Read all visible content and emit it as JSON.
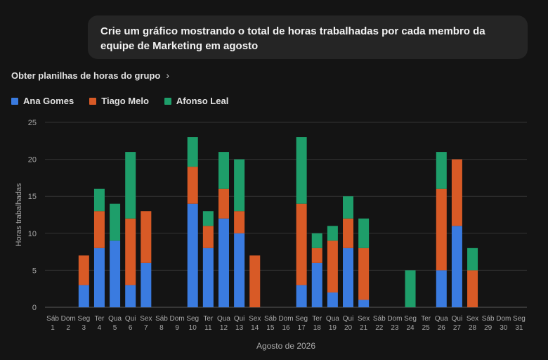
{
  "prompt": {
    "text": "Crie um gráfico mostrando o total de horas trabalhadas por cada membro da equipe de Marketing em agosto"
  },
  "sheets_link": {
    "label": "Obter planilhas de horas do grupo",
    "icon": "chevron-right-icon"
  },
  "colors": {
    "Ana Gomes": "#3a7be0",
    "Tiago Melo": "#d85a26",
    "Afonso Leal": "#1e9e6a"
  },
  "chart_data": {
    "type": "bar",
    "stacked": true,
    "xlabel": "Agosto de 2026",
    "ylabel": "Horas trabalhadas",
    "ylim": [
      0,
      25
    ],
    "yticks": [
      0,
      5,
      10,
      15,
      20,
      25
    ],
    "grid": true,
    "legend": "top-left",
    "categories": [
      [
        "Sáb",
        "1"
      ],
      [
        "Dom",
        "2"
      ],
      [
        "Seg",
        "3"
      ],
      [
        "Ter",
        "4"
      ],
      [
        "Qua",
        "5"
      ],
      [
        "Qui",
        "6"
      ],
      [
        "Sex",
        "7"
      ],
      [
        "Sáb",
        "8"
      ],
      [
        "Dom",
        "9"
      ],
      [
        "Seg",
        "10"
      ],
      [
        "Ter",
        "11"
      ],
      [
        "Qua",
        "12"
      ],
      [
        "Qui",
        "13"
      ],
      [
        "Sex",
        "14"
      ],
      [
        "Sáb",
        "15"
      ],
      [
        "Dom",
        "16"
      ],
      [
        "Seg",
        "17"
      ],
      [
        "Ter",
        "18"
      ],
      [
        "Qua",
        "19"
      ],
      [
        "Qui",
        "20"
      ],
      [
        "Sex",
        "21"
      ],
      [
        "Sáb",
        "22"
      ],
      [
        "Dom",
        "23"
      ],
      [
        "Seg",
        "24"
      ],
      [
        "Ter",
        "25"
      ],
      [
        "Qua",
        "26"
      ],
      [
        "Qui",
        "27"
      ],
      [
        "Sex",
        "28"
      ],
      [
        "Sáb",
        "29"
      ],
      [
        "Dom",
        "30"
      ],
      [
        "Seg",
        "31"
      ]
    ],
    "series": [
      {
        "name": "Ana Gomes",
        "values": [
          0,
          0,
          3,
          8,
          9,
          3,
          6,
          0,
          0,
          14,
          8,
          12,
          10,
          0,
          0,
          0,
          3,
          6,
          2,
          8,
          1,
          0,
          0,
          0,
          0,
          5,
          11,
          0,
          0,
          0,
          0
        ]
      },
      {
        "name": "Tiago Melo",
        "values": [
          0,
          0,
          4,
          5,
          0,
          9,
          7,
          0,
          0,
          5,
          3,
          4,
          3,
          7,
          0,
          0,
          11,
          2,
          7,
          4,
          7,
          0,
          0,
          0,
          0,
          11,
          9,
          5,
          0,
          0,
          0
        ]
      },
      {
        "name": "Afonso Leal",
        "values": [
          0,
          0,
          0,
          3,
          5,
          9,
          0,
          0,
          0,
          4,
          2,
          5,
          7,
          0,
          0,
          0,
          9,
          2,
          2,
          3,
          4,
          0,
          0,
          5,
          0,
          5,
          0,
          3,
          0,
          0,
          0
        ]
      }
    ]
  }
}
